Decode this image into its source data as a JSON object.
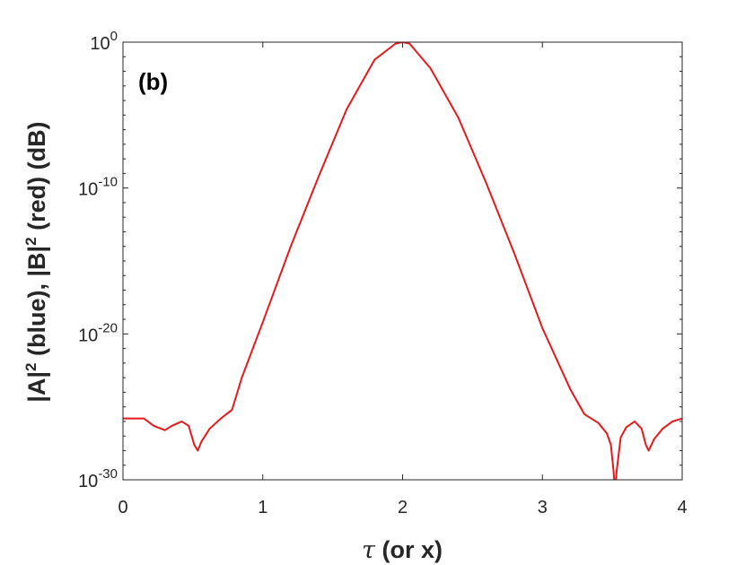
{
  "chart_data": {
    "type": "line",
    "panel_label": "(b)",
    "title": "",
    "xlabel_symbol": "τ",
    "xlabel_rest": " (or x)",
    "ylabel_parts": [
      "|A|",
      "2",
      " (blue), |B|",
      "2",
      " (red) (dB)"
    ],
    "x_scale": "linear",
    "y_scale": "log",
    "xlim": [
      0,
      4
    ],
    "ylim": [
      1e-30,
      1
    ],
    "x_ticks": [
      0,
      1,
      2,
      3,
      4
    ],
    "x_tick_labels": [
      "0",
      "1",
      "2",
      "3",
      "4"
    ],
    "y_ticks": [
      1e-30,
      1e-20,
      1e-10,
      1
    ],
    "y_tick_labels": [
      {
        "base": "10",
        "exp": "-30"
      },
      {
        "base": "10",
        "exp": "-20"
      },
      {
        "base": "10",
        "exp": "-10"
      },
      {
        "base": "10",
        "exp": "0"
      }
    ],
    "grid": false,
    "series": [
      {
        "color": "#e31a1c",
        "points": [
          [
            0.0,
            -25.8
          ],
          [
            0.15,
            -25.8
          ],
          [
            0.22,
            -26.3
          ],
          [
            0.3,
            -26.6
          ],
          [
            0.35,
            -26.3
          ],
          [
            0.42,
            -26.0
          ],
          [
            0.47,
            -26.3
          ],
          [
            0.51,
            -27.6
          ],
          [
            0.535,
            -28.0
          ],
          [
            0.56,
            -27.4
          ],
          [
            0.62,
            -26.5
          ],
          [
            0.7,
            -25.8
          ],
          [
            0.78,
            -25.2
          ],
          [
            0.85,
            -23.0
          ],
          [
            1.0,
            -19.2
          ],
          [
            1.2,
            -14.0
          ],
          [
            1.4,
            -9.2
          ],
          [
            1.6,
            -4.6
          ],
          [
            1.8,
            -1.2
          ],
          [
            1.95,
            -0.1
          ],
          [
            2.0,
            0.0
          ],
          [
            2.05,
            -0.1
          ],
          [
            2.2,
            -1.8
          ],
          [
            2.4,
            -5.2
          ],
          [
            2.6,
            -9.7
          ],
          [
            2.8,
            -14.5
          ],
          [
            3.0,
            -19.6
          ],
          [
            3.2,
            -23.8
          ],
          [
            3.3,
            -25.5
          ],
          [
            3.4,
            -26.1
          ],
          [
            3.46,
            -26.8
          ],
          [
            3.49,
            -27.6
          ],
          [
            3.51,
            -29.5
          ],
          [
            3.52,
            -31.0
          ],
          [
            3.53,
            -29.5
          ],
          [
            3.56,
            -27.1
          ],
          [
            3.6,
            -26.4
          ],
          [
            3.66,
            -26.0
          ],
          [
            3.71,
            -26.5
          ],
          [
            3.74,
            -27.6
          ],
          [
            3.76,
            -28.0
          ],
          [
            3.8,
            -27.2
          ],
          [
            3.86,
            -26.5
          ],
          [
            3.93,
            -26.0
          ],
          [
            4.0,
            -25.8
          ]
        ]
      }
    ]
  }
}
